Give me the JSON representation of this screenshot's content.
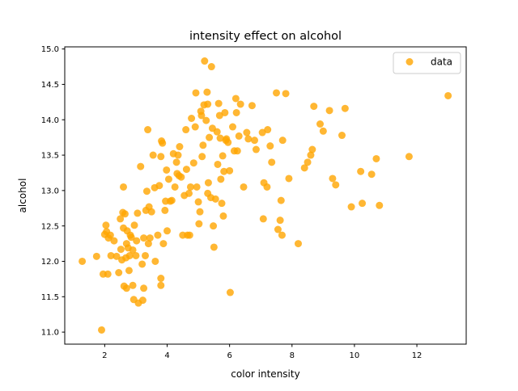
{
  "chart_data": {
    "type": "scatter",
    "title": "intensity effect on alcohol",
    "xlabel": "color intensity",
    "ylabel": "alcohol",
    "xlim": [
      0.72,
      13.58
    ],
    "ylim": [
      10.83,
      15.03
    ],
    "xticks": [
      2,
      4,
      6,
      8,
      10,
      12
    ],
    "yticks": [
      11.0,
      11.5,
      12.0,
      12.5,
      13.0,
      13.5,
      14.0,
      14.5,
      15.0
    ],
    "xtick_labels": [
      "2",
      "4",
      "6",
      "8",
      "10",
      "12"
    ],
    "ytick_labels": [
      "11.0",
      "11.5",
      "12.0",
      "12.5",
      "13.0",
      "13.5",
      "14.0",
      "14.5",
      "15.0"
    ],
    "grid": false,
    "legend": "upper right",
    "series": [
      {
        "name": "data",
        "color": "#FFA500",
        "points": [
          [
            1.28,
            12.0
          ],
          [
            1.74,
            12.07
          ],
          [
            1.9,
            11.03
          ],
          [
            1.95,
            11.82
          ],
          [
            2.0,
            12.38
          ],
          [
            2.04,
            12.51
          ],
          [
            2.06,
            12.42
          ],
          [
            2.1,
            11.82
          ],
          [
            2.12,
            12.33
          ],
          [
            2.18,
            12.37
          ],
          [
            2.2,
            12.08
          ],
          [
            2.3,
            12.29
          ],
          [
            2.38,
            12.07
          ],
          [
            2.45,
            11.84
          ],
          [
            2.5,
            12.6
          ],
          [
            2.52,
            12.17
          ],
          [
            2.55,
            12.02
          ],
          [
            2.58,
            12.69
          ],
          [
            2.6,
            13.05
          ],
          [
            2.6,
            12.47
          ],
          [
            2.62,
            11.65
          ],
          [
            2.65,
            12.67
          ],
          [
            2.68,
            12.05
          ],
          [
            2.7,
            11.62
          ],
          [
            2.7,
            12.25
          ],
          [
            2.72,
            12.43
          ],
          [
            2.75,
            12.19
          ],
          [
            2.78,
            11.87
          ],
          [
            2.8,
            12.08
          ],
          [
            2.82,
            12.37
          ],
          [
            2.85,
            12.34
          ],
          [
            2.9,
            11.66
          ],
          [
            2.9,
            12.16
          ],
          [
            2.93,
            11.46
          ],
          [
            2.95,
            12.51
          ],
          [
            3.0,
            12.08
          ],
          [
            3.02,
            12.29
          ],
          [
            3.05,
            12.68
          ],
          [
            3.08,
            11.41
          ],
          [
            3.15,
            13.34
          ],
          [
            3.2,
            11.96
          ],
          [
            3.22,
            11.45
          ],
          [
            3.25,
            11.62
          ],
          [
            3.25,
            12.33
          ],
          [
            3.3,
            12.08
          ],
          [
            3.32,
            12.72
          ],
          [
            3.35,
            12.99
          ],
          [
            3.38,
            13.86
          ],
          [
            3.4,
            12.25
          ],
          [
            3.42,
            12.77
          ],
          [
            3.45,
            12.33
          ],
          [
            3.5,
            12.7
          ],
          [
            3.55,
            13.5
          ],
          [
            3.6,
            13.04
          ],
          [
            3.62,
            12.0
          ],
          [
            3.7,
            12.37
          ],
          [
            3.75,
            13.07
          ],
          [
            3.8,
            13.48
          ],
          [
            3.8,
            11.76
          ],
          [
            3.8,
            11.66
          ],
          [
            3.82,
            13.7
          ],
          [
            3.85,
            13.67
          ],
          [
            3.88,
            12.25
          ],
          [
            3.93,
            12.72
          ],
          [
            3.95,
            12.85
          ],
          [
            3.98,
            13.29
          ],
          [
            4.0,
            12.43
          ],
          [
            4.05,
            13.16
          ],
          [
            4.1,
            12.85
          ],
          [
            4.15,
            12.86
          ],
          [
            4.2,
            13.52
          ],
          [
            4.25,
            13.05
          ],
          [
            4.3,
            13.4
          ],
          [
            4.32,
            13.24
          ],
          [
            4.35,
            13.5
          ],
          [
            4.38,
            13.21
          ],
          [
            4.4,
            13.62
          ],
          [
            4.45,
            13.19
          ],
          [
            4.5,
            12.37
          ],
          [
            4.55,
            12.93
          ],
          [
            4.6,
            13.86
          ],
          [
            4.62,
            13.3
          ],
          [
            4.65,
            12.37
          ],
          [
            4.7,
            12.96
          ],
          [
            4.72,
            12.37
          ],
          [
            4.75,
            13.05
          ],
          [
            4.78,
            14.02
          ],
          [
            4.85,
            13.39
          ],
          [
            4.9,
            13.9
          ],
          [
            4.92,
            14.38
          ],
          [
            4.95,
            13.05
          ],
          [
            5.0,
            12.84
          ],
          [
            5.02,
            12.53
          ],
          [
            5.05,
            12.7
          ],
          [
            5.08,
            14.12
          ],
          [
            5.1,
            14.06
          ],
          [
            5.12,
            13.48
          ],
          [
            5.15,
            13.64
          ],
          [
            5.18,
            14.21
          ],
          [
            5.2,
            14.83
          ],
          [
            5.25,
            13.99
          ],
          [
            5.28,
            14.39
          ],
          [
            5.3,
            14.22
          ],
          [
            5.3,
            12.96
          ],
          [
            5.32,
            13.11
          ],
          [
            5.35,
            13.75
          ],
          [
            5.4,
            12.9
          ],
          [
            5.42,
            14.75
          ],
          [
            5.45,
            13.88
          ],
          [
            5.48,
            12.5
          ],
          [
            5.5,
            12.2
          ],
          [
            5.55,
            12.88
          ],
          [
            5.6,
            13.83
          ],
          [
            5.62,
            13.37
          ],
          [
            5.65,
            14.23
          ],
          [
            5.68,
            14.06
          ],
          [
            5.7,
            13.74
          ],
          [
            5.72,
            13.16
          ],
          [
            5.75,
            12.82
          ],
          [
            5.78,
            13.49
          ],
          [
            5.8,
            12.64
          ],
          [
            5.82,
            13.27
          ],
          [
            5.85,
            14.1
          ],
          [
            5.88,
            13.71
          ],
          [
            5.9,
            13.73
          ],
          [
            5.95,
            13.68
          ],
          [
            6.0,
            13.28
          ],
          [
            6.02,
            11.56
          ],
          [
            6.1,
            13.9
          ],
          [
            6.15,
            13.56
          ],
          [
            6.2,
            14.3
          ],
          [
            6.22,
            14.1
          ],
          [
            6.25,
            13.56
          ],
          [
            6.3,
            13.77
          ],
          [
            6.35,
            14.22
          ],
          [
            6.45,
            13.05
          ],
          [
            6.55,
            13.82
          ],
          [
            6.6,
            13.73
          ],
          [
            6.72,
            14.2
          ],
          [
            6.8,
            13.71
          ],
          [
            6.85,
            13.58
          ],
          [
            7.05,
            13.82
          ],
          [
            7.08,
            12.6
          ],
          [
            7.1,
            13.11
          ],
          [
            7.2,
            13.05
          ],
          [
            7.22,
            13.86
          ],
          [
            7.3,
            13.63
          ],
          [
            7.35,
            13.4
          ],
          [
            7.5,
            14.38
          ],
          [
            7.55,
            12.45
          ],
          [
            7.62,
            12.58
          ],
          [
            7.65,
            12.86
          ],
          [
            7.68,
            12.37
          ],
          [
            7.7,
            13.71
          ],
          [
            7.8,
            14.37
          ],
          [
            7.9,
            13.17
          ],
          [
            8.2,
            12.25
          ],
          [
            8.4,
            13.32
          ],
          [
            8.5,
            13.4
          ],
          [
            8.6,
            13.5
          ],
          [
            8.65,
            13.58
          ],
          [
            8.7,
            14.19
          ],
          [
            8.9,
            13.94
          ],
          [
            9.0,
            13.84
          ],
          [
            9.2,
            14.13
          ],
          [
            9.3,
            13.17
          ],
          [
            9.4,
            13.08
          ],
          [
            9.6,
            13.78
          ],
          [
            9.7,
            14.16
          ],
          [
            9.9,
            12.77
          ],
          [
            10.2,
            13.27
          ],
          [
            10.25,
            12.82
          ],
          [
            10.55,
            13.23
          ],
          [
            10.7,
            13.45
          ],
          [
            10.8,
            12.79
          ],
          [
            11.75,
            13.48
          ],
          [
            13.0,
            14.34
          ]
        ]
      }
    ]
  }
}
